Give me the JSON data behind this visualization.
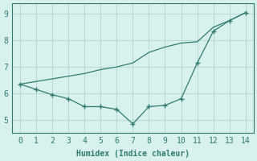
{
  "line1_x": [
    0,
    1,
    2,
    3,
    4,
    5,
    6,
    7,
    8,
    9,
    10,
    11,
    12,
    13,
    14
  ],
  "line1_y": [
    6.35,
    6.15,
    5.95,
    5.8,
    5.5,
    5.5,
    5.4,
    4.85,
    5.5,
    5.55,
    5.8,
    7.15,
    8.35,
    8.75,
    9.05
  ],
  "line2_x": [
    0,
    1,
    2,
    3,
    4,
    5,
    6,
    7,
    8,
    9,
    10,
    11,
    12,
    13,
    14
  ],
  "line2_y": [
    6.35,
    6.45,
    6.55,
    6.65,
    6.75,
    6.9,
    7.0,
    7.15,
    7.55,
    7.75,
    7.9,
    7.95,
    8.5,
    8.75,
    9.05
  ],
  "color": "#2e7d6e",
  "bg_color": "#d8f0ee",
  "grid_color": "#b8d8d4",
  "xlabel": "Humidex (Indice chaleur)",
  "xlim": [
    -0.5,
    14.5
  ],
  "ylim": [
    4.5,
    9.4
  ],
  "yticks": [
    5,
    6,
    7,
    8,
    9
  ],
  "xticks": [
    0,
    1,
    2,
    3,
    4,
    5,
    6,
    7,
    8,
    9,
    10,
    11,
    12,
    13,
    14
  ]
}
